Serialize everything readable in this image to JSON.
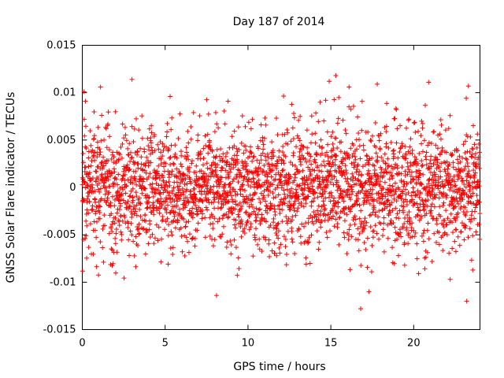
{
  "chart_data": {
    "type": "scatter",
    "title": "Day 187 of 2014",
    "xlabel": "GPS time / hours",
    "ylabel": "GNSS Solar Flare indicator / TECUs",
    "xlim": [
      0,
      24
    ],
    "ylim": [
      -0.015,
      0.015
    ],
    "x_ticks": [
      0,
      5,
      10,
      15,
      20
    ],
    "x_tick_labels": [
      "0",
      "5",
      "10",
      "15",
      "20"
    ],
    "y_ticks": [
      -0.015,
      -0.01,
      -0.005,
      0,
      0.005,
      0.01,
      0.015
    ],
    "y_tick_labels": [
      "-0.015",
      "-0.01",
      "-0.005",
      "0",
      "0.005",
      "0.01",
      "0.015"
    ],
    "grid": false,
    "marker": "+",
    "series": [
      {
        "name": "solar flare indicator",
        "color": "#ff0000",
        "generator": {
          "n_points": 2880,
          "x_start": 0,
          "x_end": 24,
          "std_dev": 0.0032,
          "seed": 187
        },
        "notable_points": [
          {
            "x": 0.1,
            "y": 0.0101
          },
          {
            "x": 1.1,
            "y": 0.0106
          },
          {
            "x": 3.0,
            "y": 0.0114
          },
          {
            "x": 5.3,
            "y": 0.0096
          },
          {
            "x": 8.1,
            "y": -0.0114
          },
          {
            "x": 8.8,
            "y": 0.0091
          },
          {
            "x": 14.9,
            "y": 0.0112
          },
          {
            "x": 15.3,
            "y": 0.0118
          },
          {
            "x": 16.1,
            "y": 0.0106
          },
          {
            "x": 16.8,
            "y": -0.0128
          },
          {
            "x": 17.3,
            "y": -0.011
          },
          {
            "x": 17.8,
            "y": 0.0109
          },
          {
            "x": 20.9,
            "y": 0.0111
          },
          {
            "x": 22.2,
            "y": -0.0097
          },
          {
            "x": 23.2,
            "y": -0.012
          },
          {
            "x": 23.3,
            "y": 0.0107
          }
        ]
      }
    ]
  }
}
